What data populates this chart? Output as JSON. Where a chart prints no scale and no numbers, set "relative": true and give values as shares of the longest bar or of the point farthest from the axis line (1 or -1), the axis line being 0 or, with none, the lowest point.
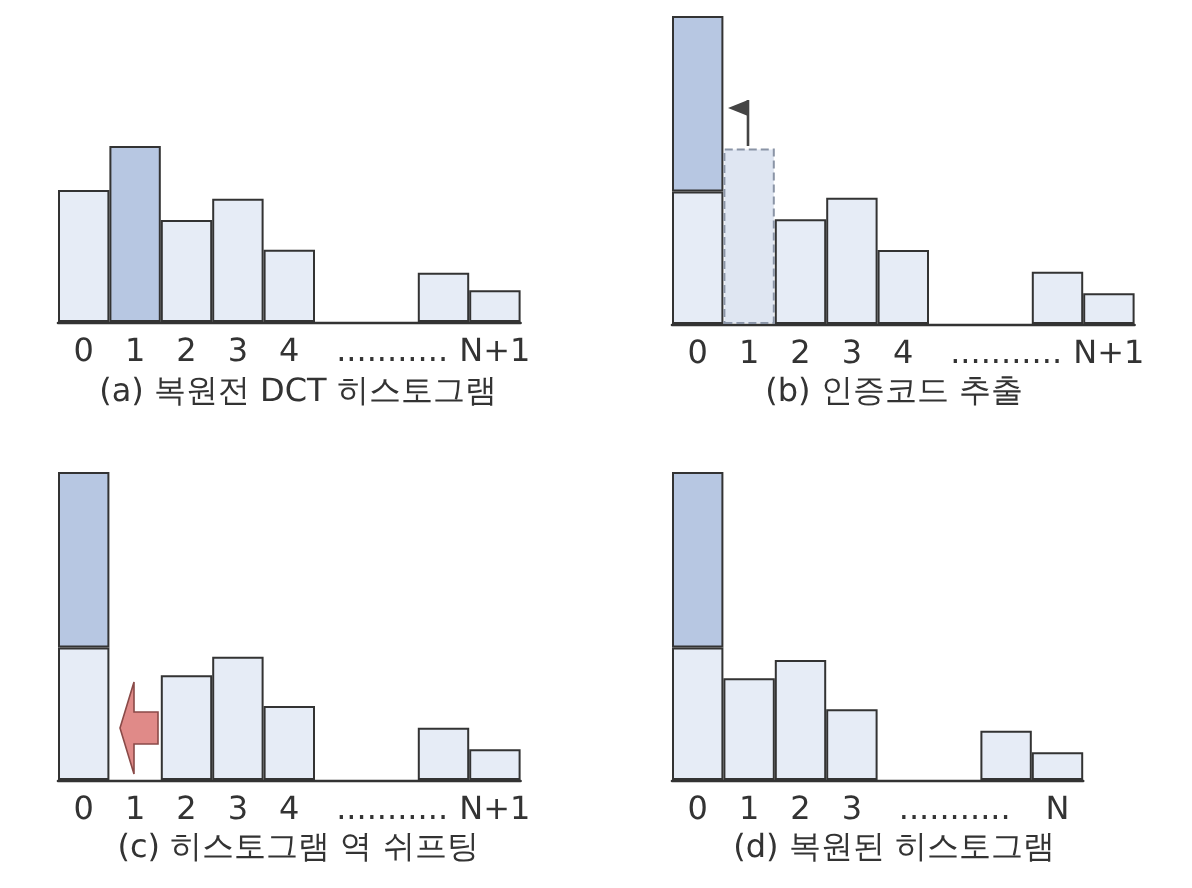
{
  "chart_data": [
    {
      "type": "bar",
      "title": "(a) 복원전 DCT 히스토그램",
      "relative": true,
      "stacked": true,
      "categories": [
        "0",
        "1",
        "2",
        "3",
        "4",
        null,
        "...........",
        null,
        "N+1"
      ],
      "series": [
        {
          "color": "#e6ecf6",
          "values": [
            0.75,
            null,
            0.58,
            0.7,
            0.41,
            null,
            null,
            0.28,
            0.18
          ]
        },
        {
          "color": "#b7c7e2",
          "values": [
            null,
            1,
            null,
            null,
            null,
            null,
            null,
            null,
            null
          ]
        }
      ]
    },
    {
      "type": "bar",
      "title": "(b) 인증코드 추출",
      "relative": true,
      "stacked": true,
      "categories": [
        "0",
        "1",
        "2",
        "3",
        "4",
        null,
        "...........",
        null,
        "N+1"
      ],
      "series": [
        {
          "color": "#e6ecf6",
          "values": [
            0.43,
            null,
            0.34,
            0.41,
            0.24,
            null,
            null,
            0.17,
            0.1
          ]
        },
        {
          "color": "#b7c7e2",
          "values": [
            0.57,
            null,
            null,
            null,
            null,
            null,
            null,
            null,
            null
          ]
        },
        {
          "color": "#dfe6f2",
          "line_style": "dashed",
          "values": [
            null,
            0.57,
            null,
            null,
            null,
            null,
            null,
            null,
            null
          ]
        }
      ]
    },
    {
      "type": "bar",
      "title": "(c) 히스토그램 역 쉬프팅",
      "relative": true,
      "stacked": true,
      "categories": [
        "0",
        "1",
        "2",
        "3",
        "4",
        null,
        "...........",
        null,
        "N+1"
      ],
      "series": [
        {
          "color": "#e6ecf6",
          "values": [
            0.43,
            null,
            0.34,
            0.4,
            0.24,
            null,
            null,
            0.17,
            0.1
          ]
        },
        {
          "color": "#b7c7e2",
          "values": [
            0.57,
            null,
            null,
            null,
            null,
            null,
            null,
            null,
            null
          ]
        }
      ]
    },
    {
      "type": "bar",
      "title": "(d) 복원된 히스토그램",
      "relative": true,
      "stacked": true,
      "categories": [
        "0",
        "1",
        "2",
        "3",
        null,
        "...........",
        null,
        "N"
      ],
      "series": [
        {
          "color": "#e6ecf6",
          "values": [
            0.43,
            0.33,
            0.39,
            0.23,
            null,
            null,
            0.16,
            0.09
          ]
        },
        {
          "color": "#b7c7e2",
          "values": [
            0.57,
            null,
            null,
            null,
            null,
            null,
            null,
            null
          ]
        }
      ]
    }
  ]
}
